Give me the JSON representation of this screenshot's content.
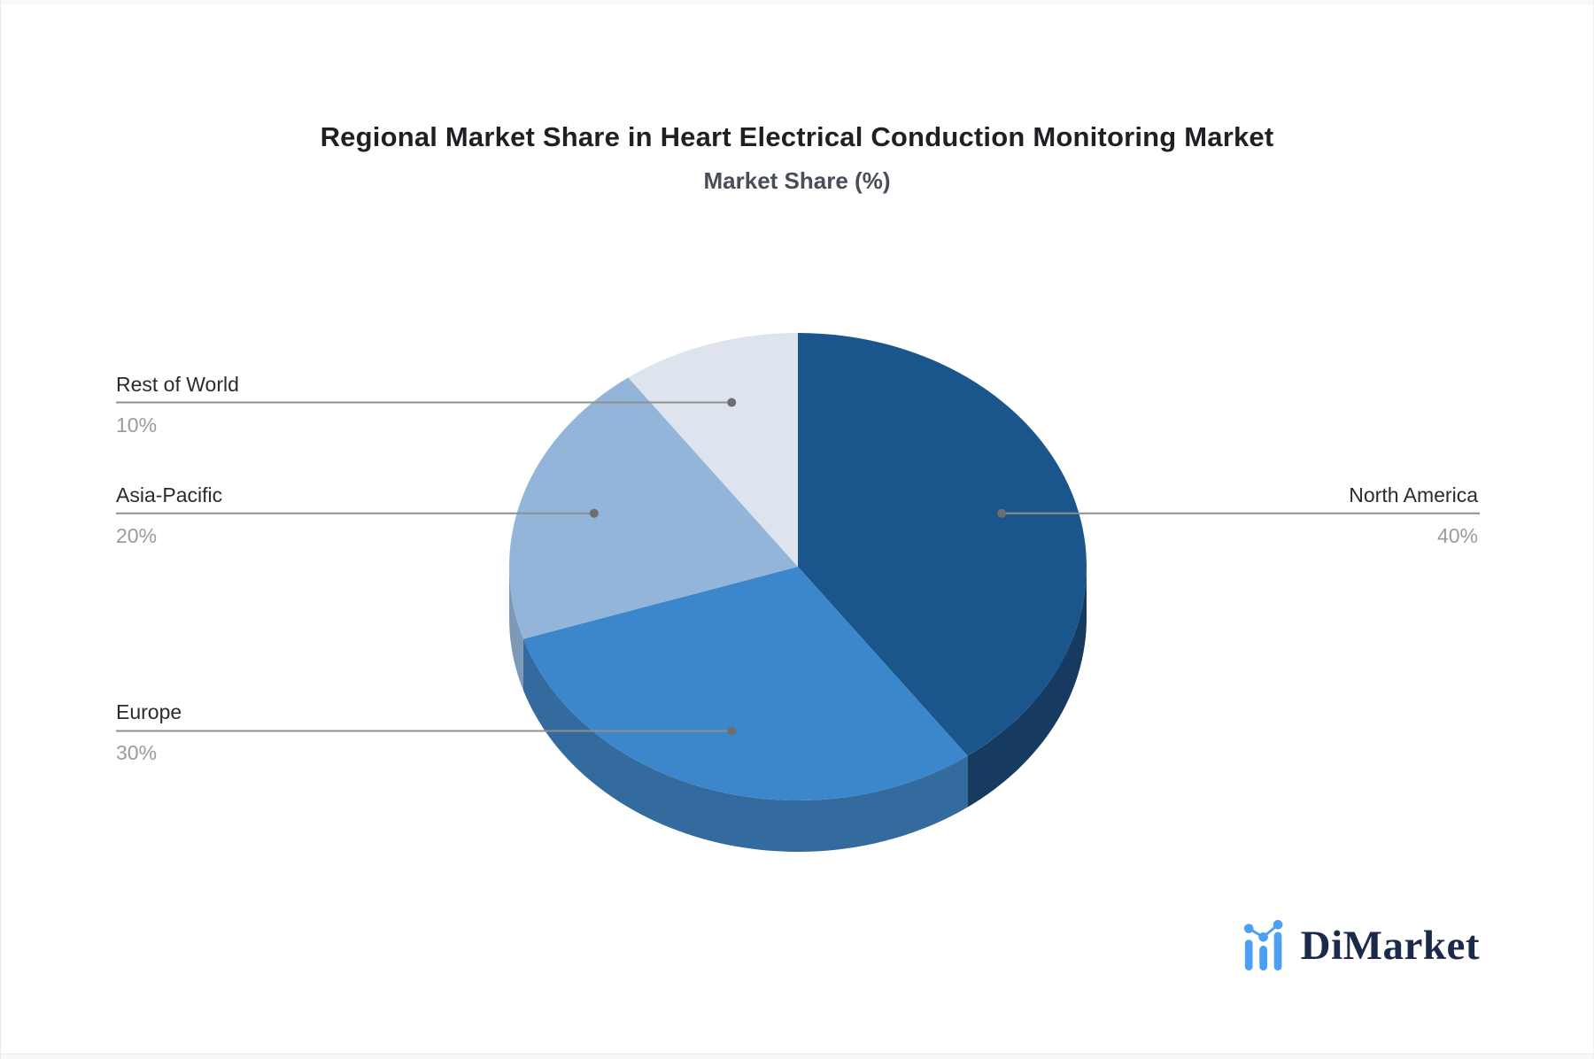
{
  "page": {
    "title": "Regional Market Share in Heart Electrical Conduction Monitoring Market",
    "subtitle": "Market Share (%)"
  },
  "chart_data": {
    "type": "pie",
    "title": "Regional Market Share in Heart Electrical Conduction Monitoring Market",
    "subtitle": "Market Share (%)",
    "unit": "%",
    "effect": "3d",
    "start_angle": "12-o-clock",
    "direction": "clockwise",
    "slices": [
      {
        "label": "North America",
        "value": 40,
        "display": "40%",
        "color": "#1A558C",
        "side_color": "#163A60",
        "label_side": "right"
      },
      {
        "label": "Europe",
        "value": 30,
        "display": "30%",
        "color": "#3C87CB",
        "side_color": "#336B9E",
        "label_side": "left"
      },
      {
        "label": "Asia-Pacific",
        "value": 20,
        "display": "20%",
        "color": "#92B5D9",
        "side_color": "#7E99B5",
        "label_side": "left"
      },
      {
        "label": "Rest of World",
        "value": 10,
        "display": "10%",
        "color": "#DDE4EE",
        "side_color": "#C2CCDC",
        "label_side": "left"
      }
    ],
    "legend_position": "none",
    "grid": false
  },
  "colors": {
    "leader_line": "#8f8f8f",
    "leader_dot": "#6e6e6e",
    "title_text": "#1f2024",
    "subtitle_text": "#474e57",
    "label_text": "#2b2b2b",
    "value_text": "#9b9b9b"
  },
  "branding": {
    "logo_text": "DiMarket",
    "logo_icon": "bar-chart-trend-icon",
    "logo_text_color": "#1B2A4A",
    "logo_icon_color": "#4BA0F4"
  }
}
